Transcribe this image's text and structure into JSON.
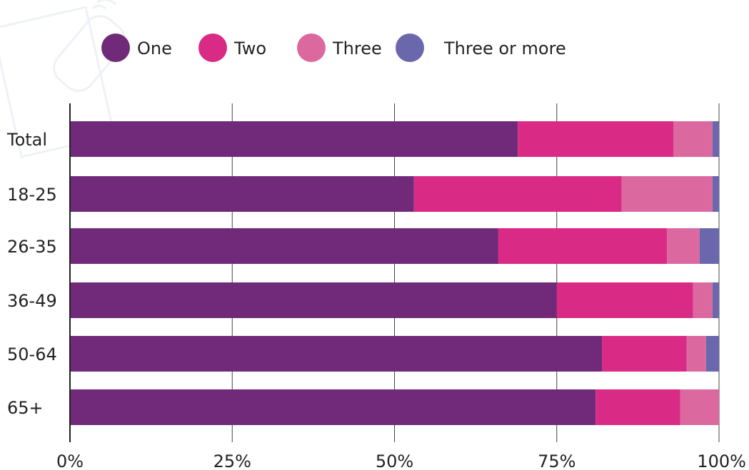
{
  "chart_data": {
    "type": "bar",
    "orientation": "horizontal",
    "stacked": true,
    "categories": [
      "Total",
      "18-25",
      "26-35",
      "36-49",
      "50-64",
      "65+"
    ],
    "series": [
      {
        "name": "One",
        "color": "#712a7a",
        "values": [
          69,
          53,
          66,
          75,
          82,
          81
        ]
      },
      {
        "name": "Two",
        "color": "#d92b85",
        "values": [
          24,
          32,
          26,
          21,
          13,
          13
        ]
      },
      {
        "name": "Three",
        "color": "#db689e",
        "values": [
          6,
          14,
          5,
          3,
          3,
          6
        ]
      },
      {
        "name": "Three or more",
        "color": "#6b67ad",
        "values": [
          1,
          1,
          3,
          1,
          2,
          0
        ]
      }
    ],
    "x_ticks": [
      "0%",
      "25%",
      "50%",
      "75%",
      "100%"
    ],
    "xlim": [
      0,
      100
    ],
    "grid": true,
    "legend_position": "top"
  }
}
